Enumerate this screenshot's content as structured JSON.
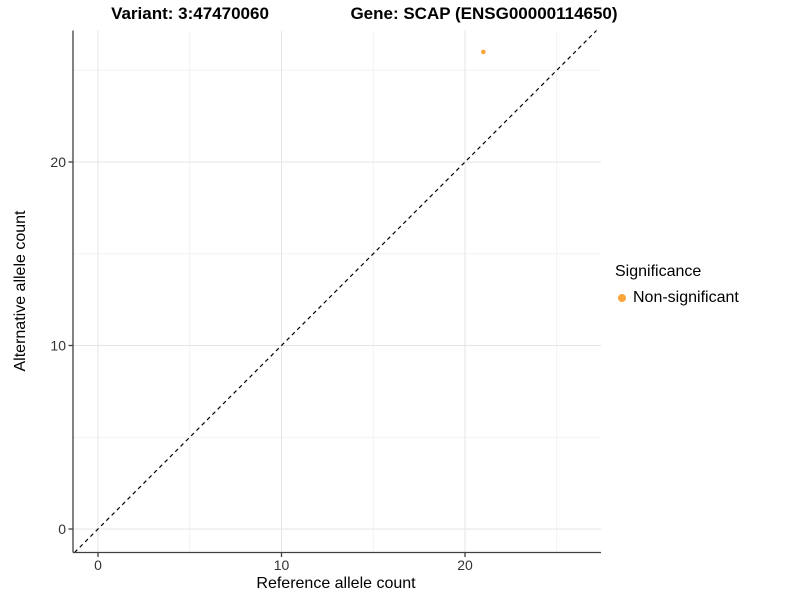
{
  "chart_data": {
    "type": "scatter",
    "title_left": "Variant: 3:47470060",
    "title_right": "Gene: SCAP (ENSG00000114650)",
    "xlabel": "Reference allele count",
    "ylabel": "Alternative allele count",
    "x_ticks": [
      0,
      10,
      20
    ],
    "y_ticks": [
      0,
      10,
      20
    ],
    "x_minor_ticks": [
      5,
      15,
      25
    ],
    "y_minor_ticks": [
      5,
      15,
      25
    ],
    "xlim": [
      -1.4,
      27.4
    ],
    "ylim": [
      -1.3,
      27.2
    ],
    "grid": true,
    "points": [
      {
        "x": 21,
        "y": 26,
        "series": "Non-significant"
      }
    ],
    "reference_line": {
      "kind": "identity",
      "slope": 1,
      "intercept": 0,
      "style": "dashed",
      "color": "#000000"
    },
    "legend": {
      "title": "Significance",
      "position": "right",
      "items": [
        {
          "label": "Non-significant",
          "color": "#FAA43A"
        }
      ]
    },
    "colors": {
      "point": "#FAA43A",
      "grid_major": "#E5E5E5",
      "grid_minor": "#F2F2F2",
      "axis": "#404040",
      "tick_text": "#333333",
      "background": "#FFFFFF"
    }
  }
}
